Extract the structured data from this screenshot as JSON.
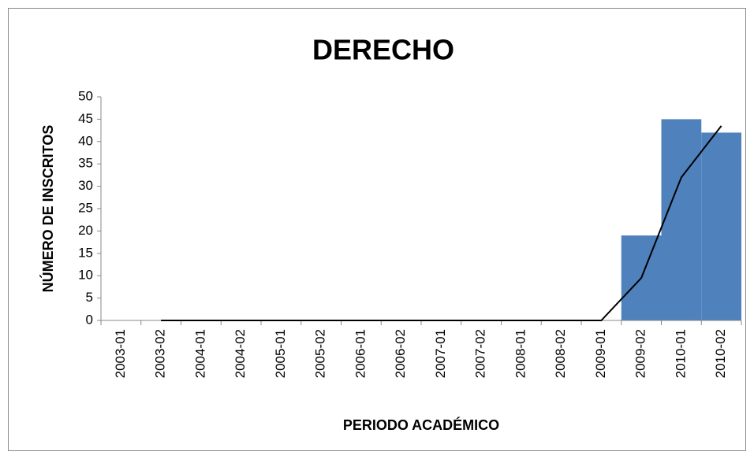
{
  "chart_data": {
    "type": "bar",
    "title": "DERECHO",
    "x_label": "PERIODO ACADÉMICO",
    "y_label": "NÚMERO DE INSCRITOS",
    "categories": [
      "2003-01",
      "2003-02",
      "2004-01",
      "2004-02",
      "2005-01",
      "2005-02",
      "2006-01",
      "2006-02",
      "2007-01",
      "2007-02",
      "2008-01",
      "2008-02",
      "2009-01",
      "2009-02",
      "2010-01",
      "2010-02"
    ],
    "values": [
      0,
      0,
      0,
      0,
      0,
      0,
      0,
      0,
      0,
      0,
      0,
      0,
      0,
      19,
      45,
      42
    ],
    "color": "#4f81bd",
    "trendline": {
      "type": "line",
      "color": "#000000",
      "values": [
        null,
        0,
        0,
        0,
        0,
        0,
        0,
        0,
        0,
        0,
        0,
        0,
        0,
        9.5,
        32,
        43.5
      ]
    },
    "ylim": [
      0,
      50
    ],
    "yticks": [
      0,
      5,
      10,
      15,
      20,
      25,
      30,
      35,
      40,
      45,
      50
    ]
  }
}
